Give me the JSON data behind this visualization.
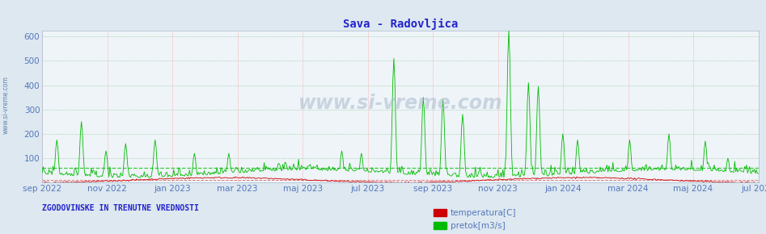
{
  "title": "Sava - Radovljica",
  "title_color": "#2222cc",
  "title_fontsize": 10,
  "fig_bg_color": "#dde8f0",
  "plot_bg_color": "#eef4f8",
  "ylim": [
    0,
    625
  ],
  "yticks": [
    100,
    200,
    300,
    400,
    500,
    600
  ],
  "x_tick_labels": [
    "sep 2022",
    "nov 2022",
    "jan 2023",
    "mar 2023",
    "maj 2023",
    "jul 2023",
    "sep 2023",
    "nov 2023",
    "jan 2024",
    "mar 2024",
    "maj 2024",
    "jul 2024"
  ],
  "vgrid_color": "#ff8888",
  "hgrid_color": "#88bb88",
  "temp_color": "#cc0000",
  "flow_color": "#00bb00",
  "flow_avg_value": 60,
  "temp_avg_value": 10,
  "watermark": "www.si-vreme.com",
  "watermark_color": "#aabbcc",
  "watermark_alpha": 0.55,
  "ylabel_side": "ZGODOVINSKE IN TRENUTNE VREDNOSTI",
  "ylabel_side_color": "#2222cc",
  "legend_items": [
    "temperatura[C]",
    "pretok[m3/s]"
  ],
  "legend_colors": [
    "#cc0000",
    "#00bb00"
  ],
  "side_label": "www.si-vreme.com",
  "side_label_color": "#5577aa",
  "tick_color": "#5577bb",
  "tick_fontsize": 7.5
}
